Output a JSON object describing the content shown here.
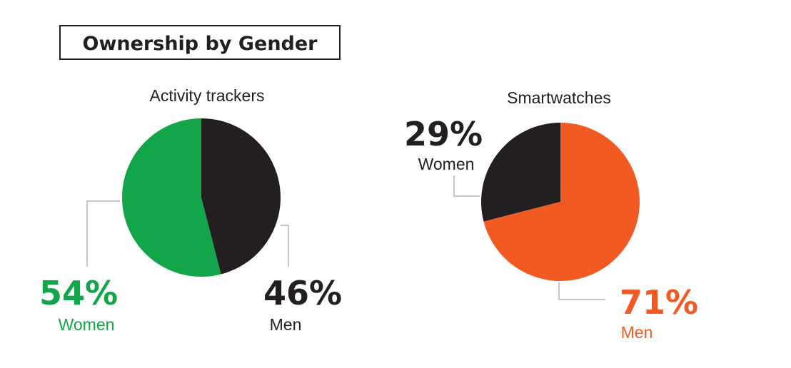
{
  "title": "Ownership by Gender",
  "chart_data": [
    {
      "type": "pie",
      "title": "Activity trackers",
      "slices": [
        {
          "label": "Women",
          "value": 54,
          "display": "54%",
          "color": "#12a54a"
        },
        {
          "label": "Men",
          "value": 46,
          "display": "46%",
          "color": "#231f20"
        }
      ]
    },
    {
      "type": "pie",
      "title": "Smartwatches",
      "slices": [
        {
          "label": "Women",
          "value": 29,
          "display": "29%",
          "color": "#231f20"
        },
        {
          "label": "Men",
          "value": 71,
          "display": "71%",
          "color": "#f15a22"
        }
      ]
    }
  ],
  "colors": {
    "label_dark": "#231f20",
    "leader_line": "#b3b3b3"
  }
}
